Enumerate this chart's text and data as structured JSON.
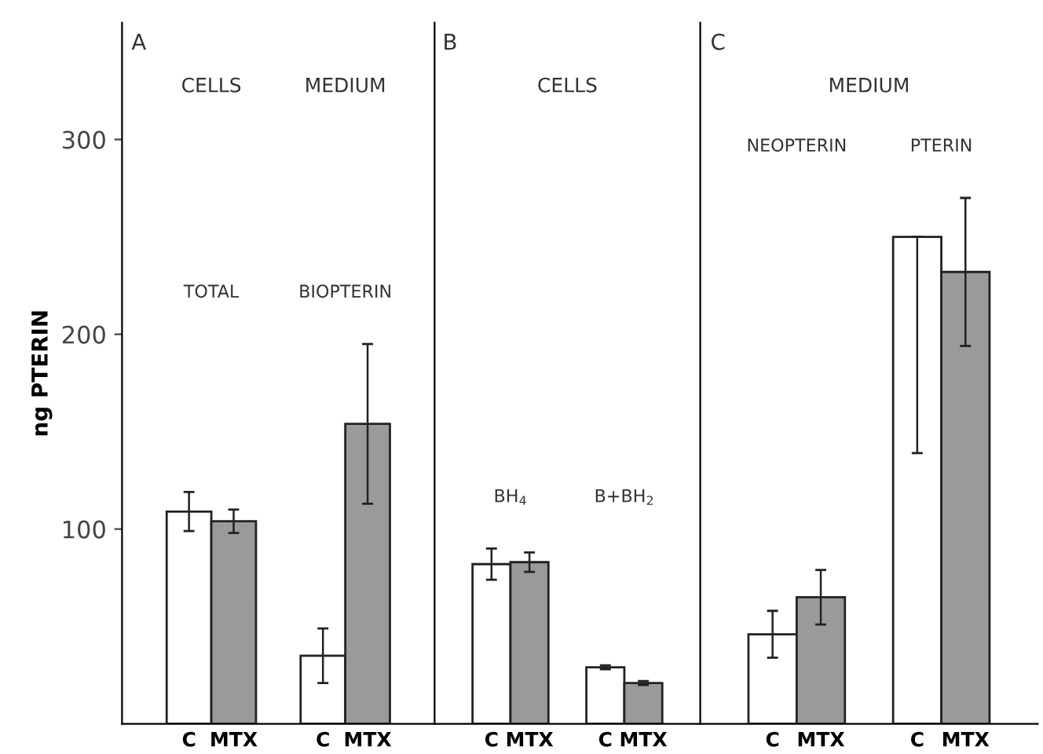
{
  "chart_data": [
    {
      "type": "bar",
      "title": "A",
      "ylabel": "ng PTERIN",
      "categories": [
        "C",
        "MTX",
        null,
        "C",
        "MTX"
      ],
      "values": [
        109,
        104,
        null,
        35,
        154
      ],
      "errors": [
        10,
        6,
        null,
        14,
        41
      ],
      "colors": [
        "#ffffff",
        "#9a9a9a",
        null,
        "#ffffff",
        "#9a9a9a"
      ],
      "annotations": [
        "CELLS",
        "MEDIUM",
        "TOTAL",
        "BIOPTERIN"
      ],
      "ylim": [
        0,
        360
      ],
      "yticks": [
        100,
        200,
        300
      ],
      "grid": false,
      "legend": false
    },
    {
      "type": "bar",
      "title": "B",
      "categories": [
        "C",
        "MTX",
        null,
        "C",
        "MTX"
      ],
      "values": [
        82,
        83,
        null,
        29,
        21
      ],
      "errors": [
        8,
        5,
        null,
        1,
        1
      ],
      "colors": [
        "#ffffff",
        "#9a9a9a",
        null,
        "#ffffff",
        "#9a9a9a"
      ],
      "annotations": [
        "CELLS",
        "BH$_{4}$",
        "B+BH$_{2}$"
      ],
      "ylim": [
        0,
        360
      ],
      "tick_labels": "x",
      "grid": false,
      "legend": false
    },
    {
      "type": "bar",
      "title": "C",
      "categories": [
        "C",
        "MTX",
        null,
        "C",
        "MTX"
      ],
      "values": [
        46,
        65,
        null,
        250,
        232
      ],
      "errors": [
        12,
        14,
        null,
        [
          139,
          250
        ],
        [
          194,
          270
        ]
      ],
      "colors": [
        "#ffffff",
        "#9a9a9a",
        null,
        "#ffffff",
        "#9a9a9a"
      ],
      "annotations": [
        "MEDIUM",
        "NEOPTERIN",
        "PTERIN"
      ],
      "ylim": [
        0,
        360
      ],
      "tick_labels": "x",
      "grid": false,
      "legend": false
    }
  ]
}
